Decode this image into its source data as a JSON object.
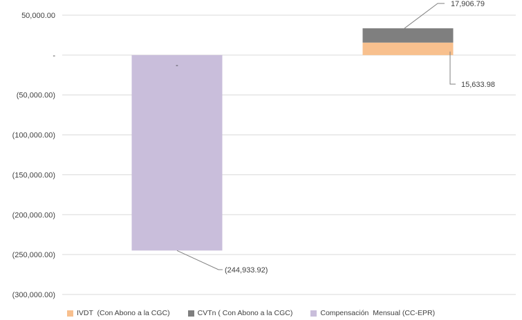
{
  "chart_data": {
    "type": "bar",
    "stacked": true,
    "title": "",
    "xlabel": "",
    "ylabel": "",
    "ylim": [
      -300000,
      50000
    ],
    "yticks": [
      50000,
      0,
      -50000,
      -100000,
      -150000,
      -200000,
      -250000,
      -300000
    ],
    "ytick_labels": [
      "50,000.00",
      "-",
      "(50,000.00)",
      "(100,000.00)",
      "(150,000.00)",
      "(200,000.00)",
      "(250,000.00)",
      "(300,000.00)"
    ],
    "grid": true,
    "legend_position": "bottom",
    "series": [
      {
        "name": "IVDT  (Con Abono a la CGC)",
        "color": "#F8C08E",
        "values": [
          0,
          15633.98
        ]
      },
      {
        "name": "CVTn ( Con Abono a la CGC)",
        "color": "#7F7F7F",
        "values": [
          0,
          17906.79
        ]
      },
      {
        "name": "Compensación  Mensual (CC-EPR)",
        "color": "#C9BEDB",
        "values": [
          -244933.92,
          0
        ]
      }
    ],
    "data_labels": {
      "ivdt": "15,633.98",
      "cvtn": "17,906.79",
      "comp": "(244,933.92)",
      "comp_top": "-"
    }
  }
}
